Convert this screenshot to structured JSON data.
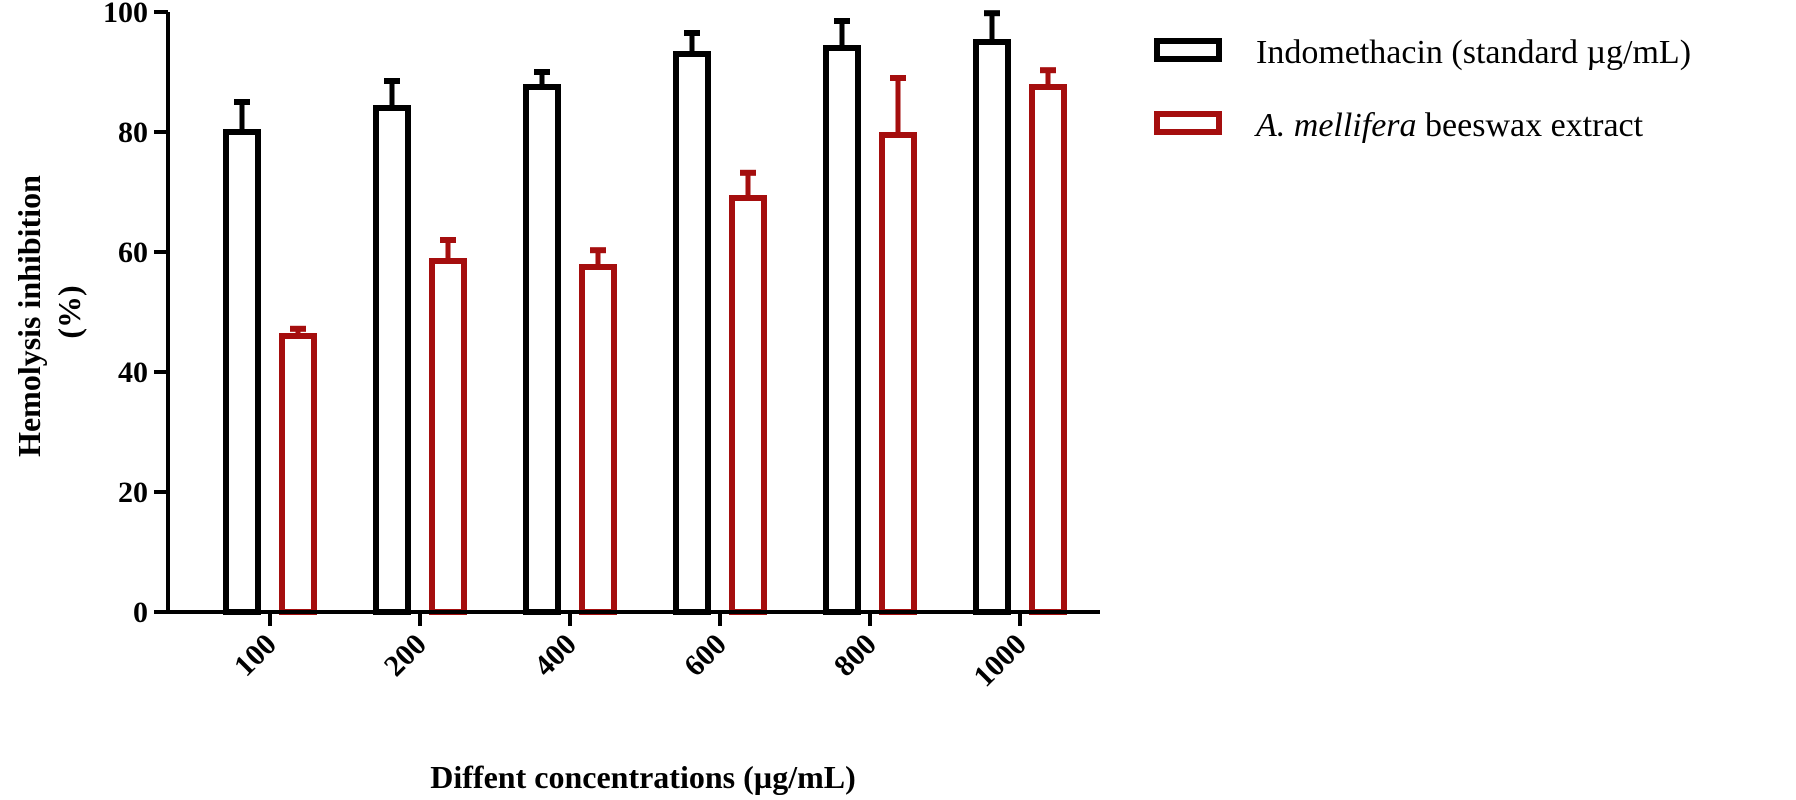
{
  "chart_data": {
    "type": "bar",
    "categories": [
      "100",
      "200",
      "400",
      "600",
      "800",
      "1000"
    ],
    "series": [
      {
        "name": "Indomethacin (standard µg/mL)",
        "color": "#000000",
        "values": [
          80,
          84,
          87.5,
          93,
          94,
          95
        ],
        "errors": [
          5,
          4.5,
          2.5,
          3.5,
          4.5,
          4.8
        ]
      },
      {
        "name_italic": "A. mellifera",
        "name_rest": " beeswax extract",
        "color": "#a50e0e",
        "values": [
          46,
          58.5,
          57.5,
          69,
          79.5,
          87.5
        ],
        "errors": [
          1.2,
          3.5,
          2.8,
          4.2,
          9.5,
          2.8
        ]
      }
    ],
    "ylabel_line1": "Hemolysis inhibition",
    "ylabel_line2": "(%)",
    "xlabel": "Diffent concentrations (µg/mL)",
    "ylim": [
      0,
      100
    ],
    "yticks": [
      "0",
      "20",
      "40",
      "60",
      "80",
      "100"
    ],
    "grid": false,
    "legend_position": "top-right"
  }
}
